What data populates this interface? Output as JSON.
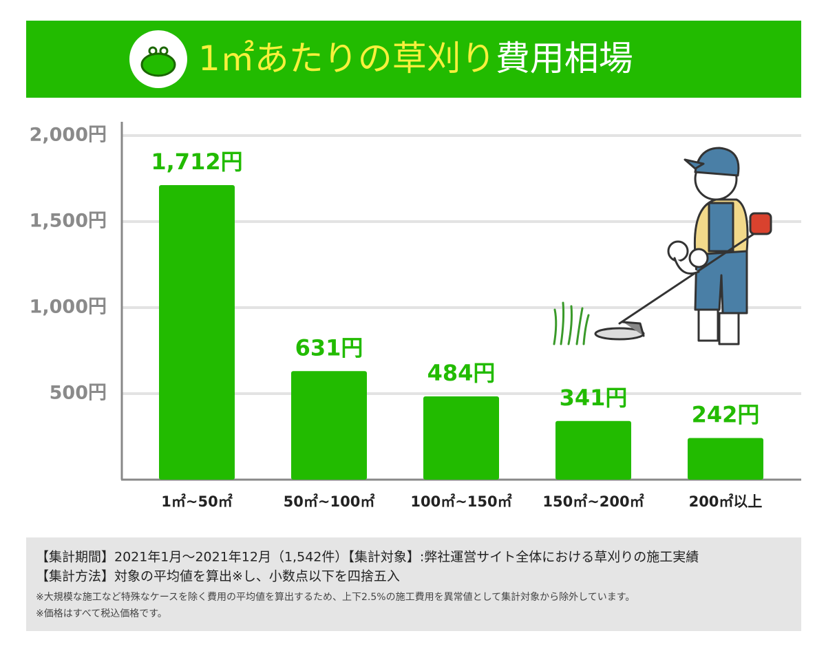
{
  "chart_data": {
    "type": "bar",
    "title": [
      "1㎡あたりの草刈り",
      "費用相場"
    ],
    "categories": [
      "1㎡~50㎡",
      "50㎡~100㎡",
      "100㎡~150㎡",
      "150㎡~200㎡",
      "200㎡以上"
    ],
    "values": [
      1712,
      631,
      484,
      341,
      242
    ],
    "value_labels": [
      "1,712円",
      "631円",
      "484円",
      "341円",
      "242円"
    ],
    "color": "#22bb00",
    "ylim": [
      0,
      2080
    ],
    "yticks": [
      {
        "value": 500,
        "label": "500円"
      },
      {
        "value": 1000,
        "label": "1,000円"
      },
      {
        "value": 1500,
        "label": "1,500円"
      },
      {
        "value": 2000,
        "label": "2,000円"
      }
    ],
    "grid": true
  },
  "footer": {
    "lines": [
      "【集計期間】2021年1月～2021年12月（1,542件）【集計対象】:弊社運営サイト全体における草刈りの施工実績",
      "【集計方法】対象の平均値を算出※し、小数点以下を四捨五入"
    ],
    "notes": [
      "※大規模な施工など特殊なケースを除く費用の平均値を算出するため、上下2.5%の施工費用を異常値として集計対象から除外しています。",
      "※価格はすべて税込価格です。"
    ]
  }
}
